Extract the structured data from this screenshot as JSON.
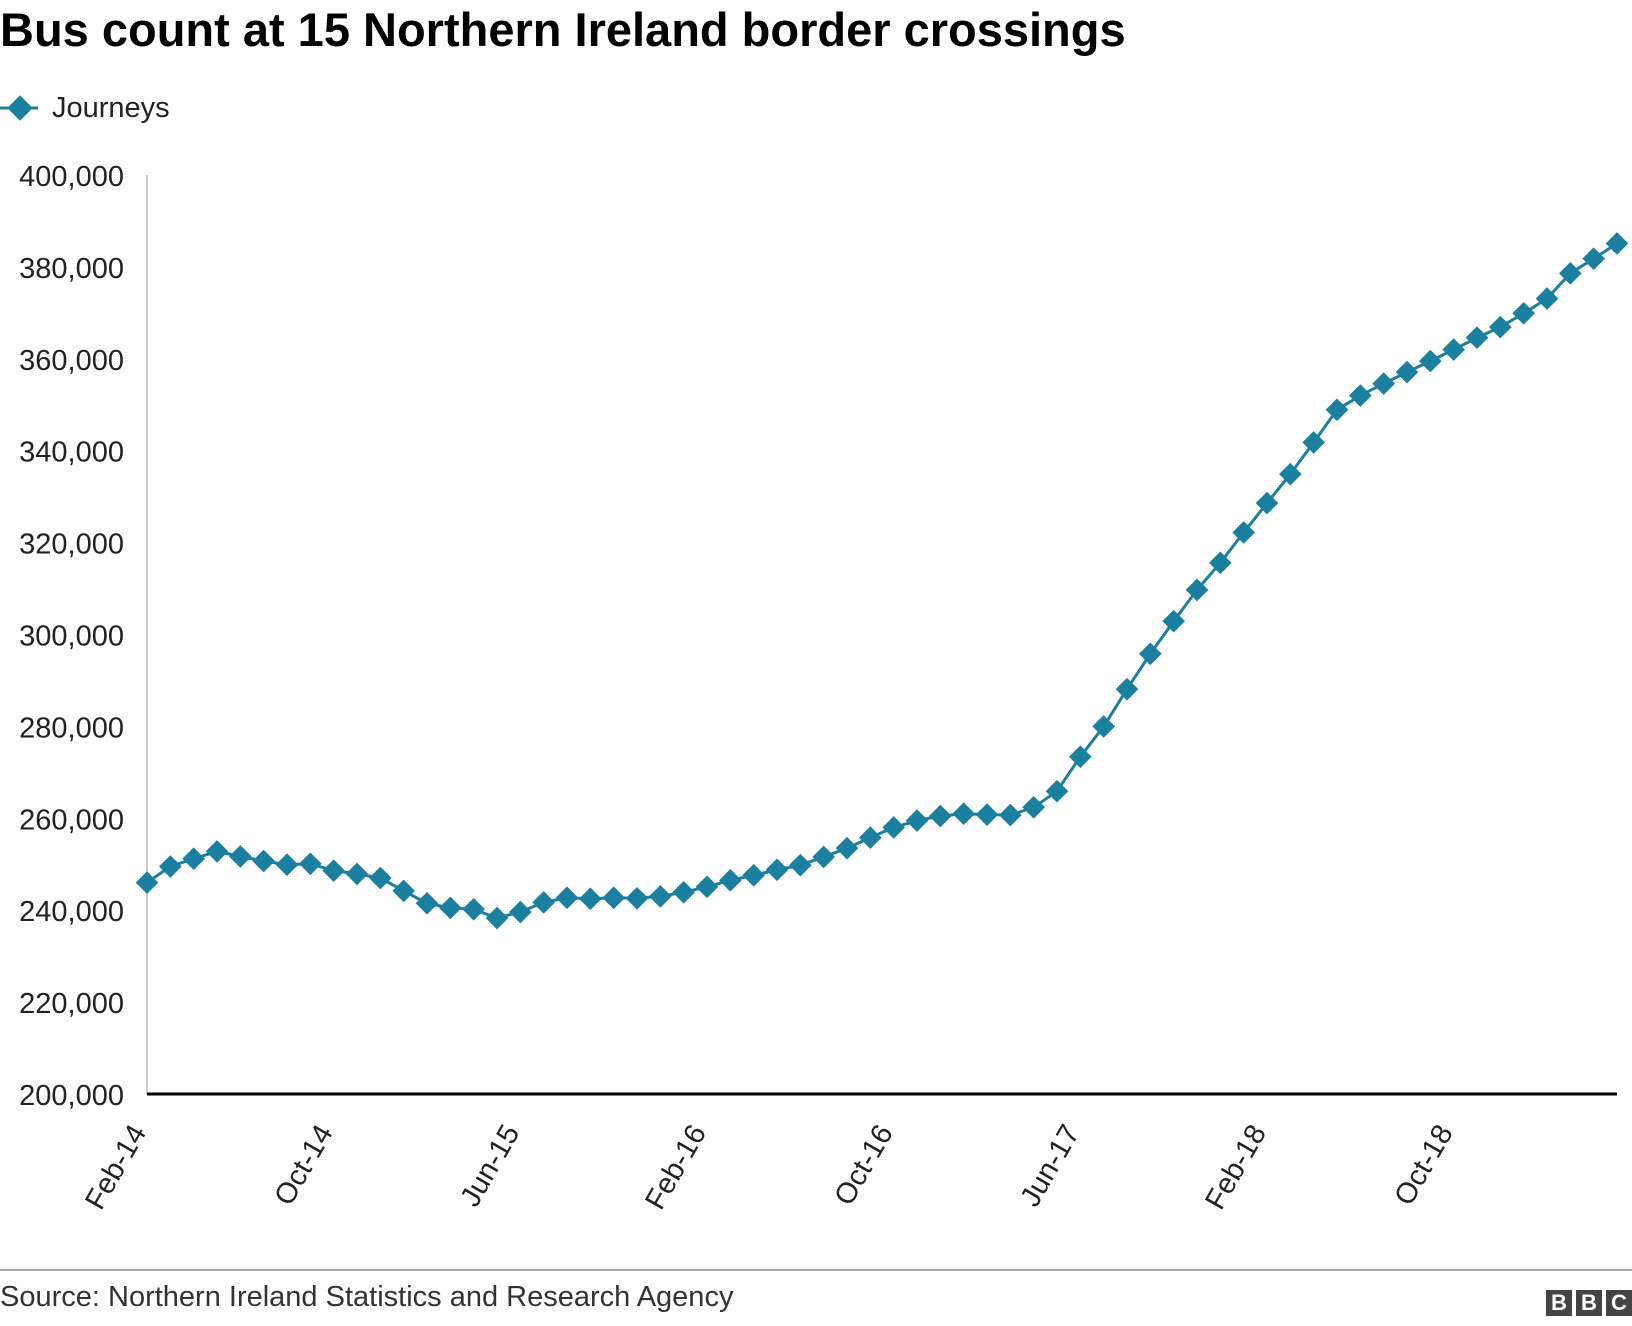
{
  "source": "Source: Northern Ireland Statistics and Research Agency",
  "logo": "BBC",
  "colors": {
    "series": "#1b7fa0",
    "axis": "#000000",
    "text": "#222222"
  },
  "chart_data": {
    "type": "line",
    "title": "Bus count at 15 Northern Ireland border crossings",
    "xlabel": "",
    "ylabel": "",
    "ylim": [
      200000,
      400000
    ],
    "y_ticks": [
      200000,
      220000,
      240000,
      260000,
      280000,
      300000,
      320000,
      340000,
      360000,
      380000,
      400000
    ],
    "y_tick_labels": [
      "200,000",
      "220,000",
      "240,000",
      "260,000",
      "280,000",
      "300,000",
      "320,000",
      "340,000",
      "360,000",
      "380,000",
      "400,000"
    ],
    "x_ticks": [
      "Feb-14",
      "Oct-14",
      "Jun-15",
      "Feb-16",
      "Oct-16",
      "Jun-17",
      "Feb-18",
      "Oct-18"
    ],
    "legend": "top-left",
    "grid": false,
    "x": [
      "Feb-14",
      "Mar-14",
      "Apr-14",
      "May-14",
      "Jun-14",
      "Jul-14",
      "Aug-14",
      "Sep-14",
      "Oct-14",
      "Nov-14",
      "Dec-14",
      "Jan-15",
      "Feb-15",
      "Mar-15",
      "Apr-15",
      "May-15",
      "Jun-15",
      "Jul-15",
      "Aug-15",
      "Sep-15",
      "Oct-15",
      "Nov-15",
      "Dec-15",
      "Jan-16",
      "Feb-16",
      "Mar-16",
      "Apr-16",
      "May-16",
      "Jun-16",
      "Jul-16",
      "Aug-16",
      "Sep-16",
      "Oct-16",
      "Nov-16",
      "Dec-16",
      "Jan-17",
      "Feb-17",
      "Mar-17",
      "Apr-17",
      "May-17",
      "Jun-17",
      "Jul-17",
      "Aug-17",
      "Sep-17",
      "Oct-17",
      "Nov-17",
      "Dec-17",
      "Jan-18",
      "Feb-18",
      "Mar-18",
      "Apr-18",
      "May-18",
      "Jun-18",
      "Jul-18",
      "Aug-18",
      "Sep-18",
      "Oct-18",
      "Nov-18",
      "Dec-18",
      "Jan-19",
      "Feb-19",
      "Mar-19",
      "Apr-19",
      "May-19"
    ],
    "series": [
      {
        "name": "Journeys",
        "values": [
          246000,
          249500,
          251200,
          252800,
          251700,
          250700,
          249900,
          250100,
          248600,
          247900,
          247000,
          244200,
          241500,
          240500,
          240200,
          238300,
          239600,
          241700,
          242700,
          242500,
          242700,
          242600,
          243000,
          243900,
          245100,
          246500,
          247600,
          248800,
          249800,
          251600,
          253500,
          255800,
          258000,
          259500,
          260500,
          261000,
          260800,
          260700,
          262400,
          265900,
          273400,
          280000,
          288100,
          295800,
          302900,
          309700,
          315600,
          322200,
          328600,
          334900,
          341800,
          348900,
          352000,
          354600,
          357100,
          359500,
          362000,
          364600,
          366900,
          369900,
          373100,
          378600,
          381800,
          385100
        ]
      }
    ]
  }
}
